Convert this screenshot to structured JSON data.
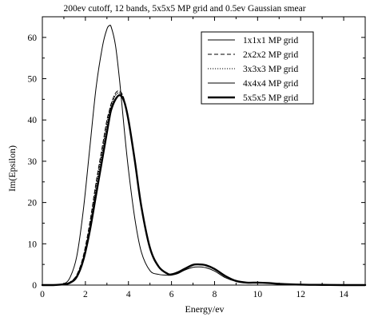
{
  "chart_data": {
    "type": "line",
    "title": "200ev cutoff, 12 bands, 5x5x5 MP grid and 0.5ev Gaussian smear",
    "xlabel": "Energy/ev",
    "ylabel": "Im(Epsilon)",
    "xlim": [
      0,
      15
    ],
    "ylim": [
      0,
      65
    ],
    "xticks": [
      0,
      2,
      4,
      6,
      8,
      10,
      12,
      14
    ],
    "yticks": [
      0,
      10,
      20,
      30,
      40,
      50,
      60
    ],
    "legend_position": "top-right",
    "grid": false,
    "x": [
      0,
      0.5,
      1.0,
      1.3,
      1.6,
      1.9,
      2.2,
      2.5,
      2.8,
      3.0,
      3.1,
      3.2,
      3.4,
      3.6,
      3.8,
      4.0,
      4.3,
      4.6,
      5.0,
      5.4,
      5.8,
      6.0,
      6.3,
      6.6,
      7.0,
      7.3,
      7.6,
      8.0,
      8.5,
      9.0,
      9.5,
      10.0,
      10.5,
      11.0,
      12.0,
      13.0,
      14.0,
      15.0
    ],
    "series": [
      {
        "name": "1x1x1 MP grid",
        "style": "solid-thin",
        "values": [
          0,
          0,
          0.3,
          2,
          7,
          18,
          33,
          48,
          58,
          62,
          62.8,
          62.5,
          58,
          49,
          38,
          28,
          16,
          8,
          3.5,
          2.6,
          2.4,
          2.4,
          2.8,
          3.6,
          4.3,
          4.4,
          4.2,
          3.4,
          1.8,
          0.9,
          0.6,
          0.6,
          0.5,
          0.3,
          0.1,
          0.05,
          0,
          0
        ]
      },
      {
        "name": "2x2x2 MP grid",
        "style": "dashed",
        "values": [
          0,
          0,
          0.2,
          0.8,
          2.5,
          7,
          15,
          25,
          34,
          40,
          42,
          44,
          46.5,
          47,
          45,
          40,
          30,
          19,
          9,
          4.5,
          2.8,
          2.6,
          3.1,
          3.9,
          4.9,
          5.0,
          4.8,
          3.9,
          2.2,
          1.0,
          0.6,
          0.6,
          0.5,
          0.3,
          0.1,
          0.05,
          0,
          0
        ]
      },
      {
        "name": "3x3x3 MP grid",
        "style": "dotted",
        "values": [
          0,
          0,
          0.2,
          0.7,
          2.3,
          6.5,
          14,
          24,
          33,
          39,
          41.5,
          43.5,
          46,
          46.5,
          44.8,
          40,
          30,
          19,
          9,
          4.5,
          2.8,
          2.6,
          3.1,
          3.9,
          4.9,
          5.0,
          4.8,
          3.9,
          2.2,
          1.0,
          0.6,
          0.6,
          0.5,
          0.3,
          0.1,
          0.05,
          0,
          0
        ]
      },
      {
        "name": "4x4x4 MP grid",
        "style": "solid-thin",
        "values": [
          0,
          0,
          0.2,
          0.6,
          2.0,
          6,
          13,
          22,
          31,
          37,
          40,
          42.5,
          45,
          46,
          44.5,
          40,
          30,
          19,
          9,
          4.5,
          2.8,
          2.6,
          3.1,
          3.9,
          4.9,
          5.0,
          4.8,
          3.9,
          2.2,
          1.0,
          0.6,
          0.6,
          0.5,
          0.3,
          0.1,
          0.05,
          0,
          0
        ]
      },
      {
        "name": "5x5x5 MP grid",
        "style": "solid-thick",
        "values": [
          0,
          0,
          0.2,
          0.6,
          2.0,
          6,
          13,
          22,
          31,
          37,
          40,
          42.5,
          45,
          46,
          44.5,
          40,
          30,
          19,
          9,
          4.5,
          2.8,
          2.6,
          3.1,
          3.9,
          4.9,
          5.0,
          4.8,
          3.9,
          2.2,
          1.0,
          0.6,
          0.6,
          0.5,
          0.3,
          0.1,
          0.05,
          0,
          0
        ]
      }
    ]
  }
}
